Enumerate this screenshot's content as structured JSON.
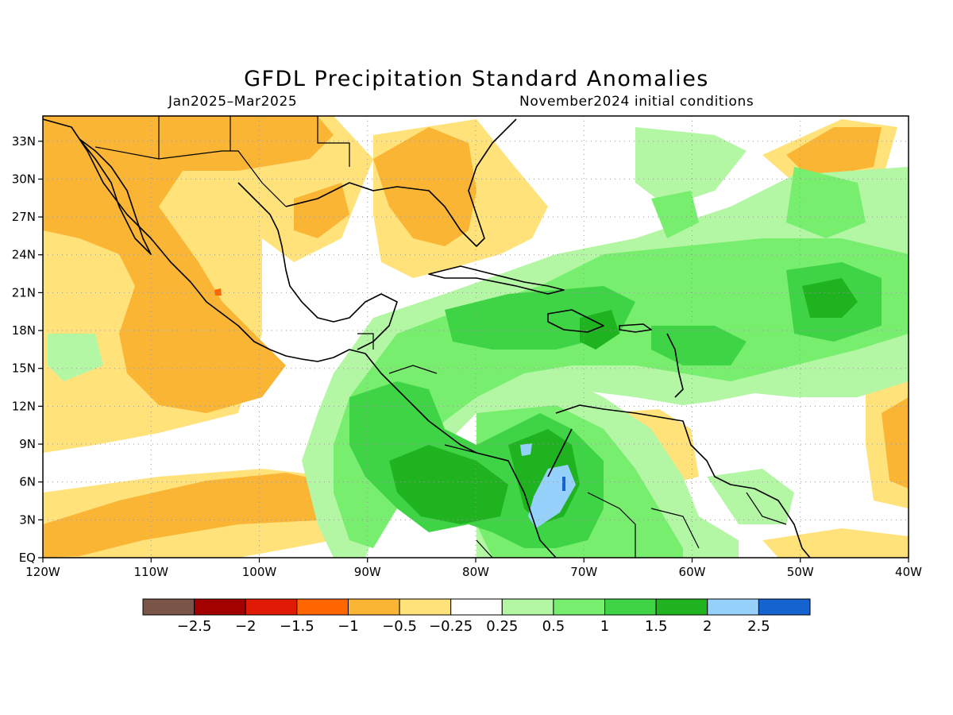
{
  "title": "GFDL Precipitation Standard Anomalies",
  "subtitle_left": "Jan2025–Mar2025",
  "subtitle_right": "November2024 initial conditions",
  "map": {
    "lon_range": [
      -120,
      -40
    ],
    "lat_range": [
      0,
      35
    ],
    "x_ticks": [
      "120W",
      "110W",
      "100W",
      "90W",
      "80W",
      "70W",
      "60W",
      "50W",
      "40W"
    ],
    "y_ticks": [
      "EQ",
      "3N",
      "6N",
      "9N",
      "12N",
      "15N",
      "18N",
      "21N",
      "24N",
      "27N",
      "30N",
      "33N"
    ],
    "grid": "dotted"
  },
  "colorbar": {
    "labels": [
      "−2.5",
      "−2",
      "−1.5",
      "−1",
      "−0.5",
      "−0.25",
      "0.25",
      "0.5",
      "1",
      "1.5",
      "2",
      "2.5"
    ],
    "colors": [
      "#7a5449",
      "#a30000",
      "#df1b06",
      "#ff6600",
      "#fbb535",
      "#ffe27a",
      "#ffffff",
      "#b3f7a5",
      "#78ee6f",
      "#3ed446",
      "#1fb31f",
      "#96d1fb",
      "#1463d1"
    ]
  },
  "colors": {
    "dry_moderate": "#fbb535",
    "dry_weak": "#ffe27a",
    "wet_weak": "#b3f7a5",
    "wet_moderate": "#78ee6f",
    "wet_strong": "#3ed446",
    "wet_very_strong": "#1fb31f",
    "wet_extreme": "#96d1fb",
    "wet_max": "#1463d1",
    "dry_strong": "#ff6600"
  }
}
